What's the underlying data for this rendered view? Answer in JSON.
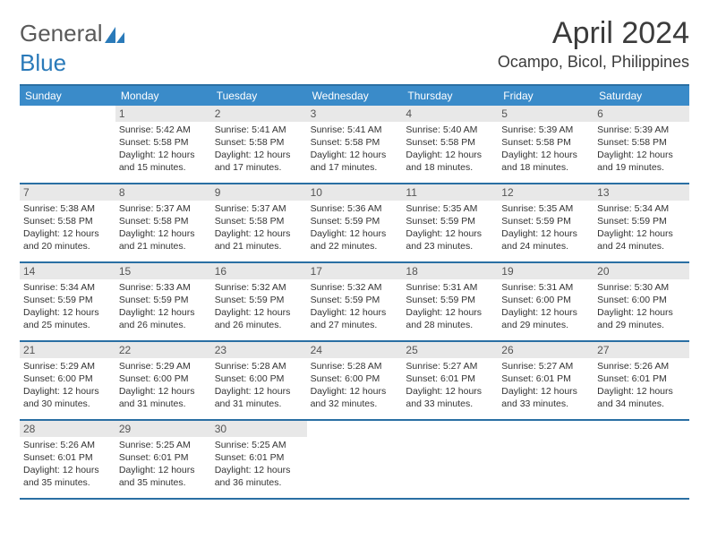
{
  "logo": {
    "word1": "General",
    "word2": "Blue"
  },
  "title": "April 2024",
  "location": "Ocampo, Bicol, Philippines",
  "colors": {
    "header_bg": "#3a8bc9",
    "header_border": "#2a6fa3",
    "daynum_bg": "#e8e8e8",
    "text": "#333333",
    "logo_gray": "#5a5a5a",
    "logo_blue": "#2a7ab9"
  },
  "daysOfWeek": [
    "Sunday",
    "Monday",
    "Tuesday",
    "Wednesday",
    "Thursday",
    "Friday",
    "Saturday"
  ],
  "weeks": [
    [
      {
        "empty": true
      },
      {
        "n": "1",
        "sunrise": "Sunrise: 5:42 AM",
        "sunset": "Sunset: 5:58 PM",
        "daylight": "Daylight: 12 hours and 15 minutes."
      },
      {
        "n": "2",
        "sunrise": "Sunrise: 5:41 AM",
        "sunset": "Sunset: 5:58 PM",
        "daylight": "Daylight: 12 hours and 17 minutes."
      },
      {
        "n": "3",
        "sunrise": "Sunrise: 5:41 AM",
        "sunset": "Sunset: 5:58 PM",
        "daylight": "Daylight: 12 hours and 17 minutes."
      },
      {
        "n": "4",
        "sunrise": "Sunrise: 5:40 AM",
        "sunset": "Sunset: 5:58 PM",
        "daylight": "Daylight: 12 hours and 18 minutes."
      },
      {
        "n": "5",
        "sunrise": "Sunrise: 5:39 AM",
        "sunset": "Sunset: 5:58 PM",
        "daylight": "Daylight: 12 hours and 18 minutes."
      },
      {
        "n": "6",
        "sunrise": "Sunrise: 5:39 AM",
        "sunset": "Sunset: 5:58 PM",
        "daylight": "Daylight: 12 hours and 19 minutes."
      }
    ],
    [
      {
        "n": "7",
        "sunrise": "Sunrise: 5:38 AM",
        "sunset": "Sunset: 5:58 PM",
        "daylight": "Daylight: 12 hours and 20 minutes."
      },
      {
        "n": "8",
        "sunrise": "Sunrise: 5:37 AM",
        "sunset": "Sunset: 5:58 PM",
        "daylight": "Daylight: 12 hours and 21 minutes."
      },
      {
        "n": "9",
        "sunrise": "Sunrise: 5:37 AM",
        "sunset": "Sunset: 5:58 PM",
        "daylight": "Daylight: 12 hours and 21 minutes."
      },
      {
        "n": "10",
        "sunrise": "Sunrise: 5:36 AM",
        "sunset": "Sunset: 5:59 PM",
        "daylight": "Daylight: 12 hours and 22 minutes."
      },
      {
        "n": "11",
        "sunrise": "Sunrise: 5:35 AM",
        "sunset": "Sunset: 5:59 PM",
        "daylight": "Daylight: 12 hours and 23 minutes."
      },
      {
        "n": "12",
        "sunrise": "Sunrise: 5:35 AM",
        "sunset": "Sunset: 5:59 PM",
        "daylight": "Daylight: 12 hours and 24 minutes."
      },
      {
        "n": "13",
        "sunrise": "Sunrise: 5:34 AM",
        "sunset": "Sunset: 5:59 PM",
        "daylight": "Daylight: 12 hours and 24 minutes."
      }
    ],
    [
      {
        "n": "14",
        "sunrise": "Sunrise: 5:34 AM",
        "sunset": "Sunset: 5:59 PM",
        "daylight": "Daylight: 12 hours and 25 minutes."
      },
      {
        "n": "15",
        "sunrise": "Sunrise: 5:33 AM",
        "sunset": "Sunset: 5:59 PM",
        "daylight": "Daylight: 12 hours and 26 minutes."
      },
      {
        "n": "16",
        "sunrise": "Sunrise: 5:32 AM",
        "sunset": "Sunset: 5:59 PM",
        "daylight": "Daylight: 12 hours and 26 minutes."
      },
      {
        "n": "17",
        "sunrise": "Sunrise: 5:32 AM",
        "sunset": "Sunset: 5:59 PM",
        "daylight": "Daylight: 12 hours and 27 minutes."
      },
      {
        "n": "18",
        "sunrise": "Sunrise: 5:31 AM",
        "sunset": "Sunset: 5:59 PM",
        "daylight": "Daylight: 12 hours and 28 minutes."
      },
      {
        "n": "19",
        "sunrise": "Sunrise: 5:31 AM",
        "sunset": "Sunset: 6:00 PM",
        "daylight": "Daylight: 12 hours and 29 minutes."
      },
      {
        "n": "20",
        "sunrise": "Sunrise: 5:30 AM",
        "sunset": "Sunset: 6:00 PM",
        "daylight": "Daylight: 12 hours and 29 minutes."
      }
    ],
    [
      {
        "n": "21",
        "sunrise": "Sunrise: 5:29 AM",
        "sunset": "Sunset: 6:00 PM",
        "daylight": "Daylight: 12 hours and 30 minutes."
      },
      {
        "n": "22",
        "sunrise": "Sunrise: 5:29 AM",
        "sunset": "Sunset: 6:00 PM",
        "daylight": "Daylight: 12 hours and 31 minutes."
      },
      {
        "n": "23",
        "sunrise": "Sunrise: 5:28 AM",
        "sunset": "Sunset: 6:00 PM",
        "daylight": "Daylight: 12 hours and 31 minutes."
      },
      {
        "n": "24",
        "sunrise": "Sunrise: 5:28 AM",
        "sunset": "Sunset: 6:00 PM",
        "daylight": "Daylight: 12 hours and 32 minutes."
      },
      {
        "n": "25",
        "sunrise": "Sunrise: 5:27 AM",
        "sunset": "Sunset: 6:01 PM",
        "daylight": "Daylight: 12 hours and 33 minutes."
      },
      {
        "n": "26",
        "sunrise": "Sunrise: 5:27 AM",
        "sunset": "Sunset: 6:01 PM",
        "daylight": "Daylight: 12 hours and 33 minutes."
      },
      {
        "n": "27",
        "sunrise": "Sunrise: 5:26 AM",
        "sunset": "Sunset: 6:01 PM",
        "daylight": "Daylight: 12 hours and 34 minutes."
      }
    ],
    [
      {
        "n": "28",
        "sunrise": "Sunrise: 5:26 AM",
        "sunset": "Sunset: 6:01 PM",
        "daylight": "Daylight: 12 hours and 35 minutes."
      },
      {
        "n": "29",
        "sunrise": "Sunrise: 5:25 AM",
        "sunset": "Sunset: 6:01 PM",
        "daylight": "Daylight: 12 hours and 35 minutes."
      },
      {
        "n": "30",
        "sunrise": "Sunrise: 5:25 AM",
        "sunset": "Sunset: 6:01 PM",
        "daylight": "Daylight: 12 hours and 36 minutes."
      },
      {
        "empty": true
      },
      {
        "empty": true
      },
      {
        "empty": true
      },
      {
        "empty": true
      }
    ]
  ]
}
